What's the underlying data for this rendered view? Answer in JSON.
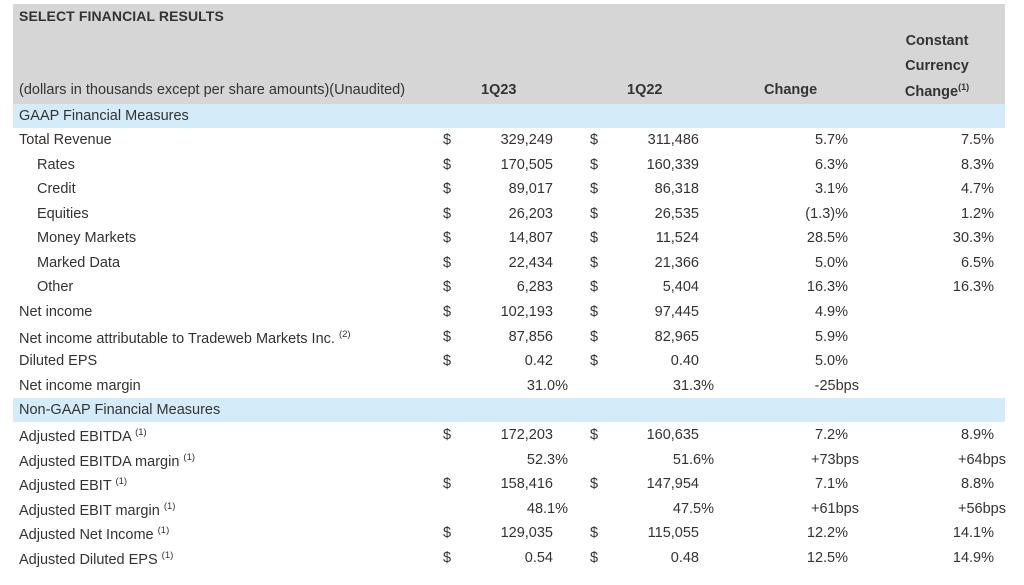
{
  "title": "SELECT FINANCIAL RESULTS",
  "header_note": "(dollars in thousands except per share amounts)(Unaudited)",
  "columns": {
    "q1": "1Q23",
    "q2": "1Q22",
    "change": "Change",
    "cc_line1": "Constant",
    "cc_line2": "Currency",
    "cc_line3": "Change",
    "cc_sup": "(1)"
  },
  "sections": {
    "gaap": "GAAP Financial Measures",
    "nongaap": "Non-GAAP Financial Measures"
  },
  "currency_symbol": "$",
  "rows": [
    {
      "label": "Total Revenue",
      "sup": "",
      "q1": "329,249",
      "q2": "311,486",
      "change": "5.7%",
      "cc": "7.5%"
    },
    {
      "label": "Rates",
      "sup": "",
      "q1": "170,505",
      "q2": "160,339",
      "change": "6.3%",
      "cc": "8.3%"
    },
    {
      "label": "Credit",
      "sup": "",
      "q1": "89,017",
      "q2": "86,318",
      "change": "3.1%",
      "cc": "4.7%"
    },
    {
      "label": "Equities",
      "sup": "",
      "q1": "26,203",
      "q2": "26,535",
      "change": "(1.3)%",
      "cc": "1.2%"
    },
    {
      "label": "Money Markets",
      "sup": "",
      "q1": "14,807",
      "q2": "11,524",
      "change": "28.5%",
      "cc": "30.3%"
    },
    {
      "label": "Marked Data",
      "sup": "",
      "q1": "22,434",
      "q2": "21,366",
      "change": "5.0%",
      "cc": "6.5%"
    },
    {
      "label": "Other",
      "sup": "",
      "q1": "6,283",
      "q2": "5,404",
      "change": "16.3%",
      "cc": "16.3%"
    },
    {
      "label": "Net income",
      "sup": "",
      "q1": "102,193",
      "q2": "97,445",
      "change": "4.9%",
      "cc": ""
    },
    {
      "label": "Net income attributable to Tradeweb Markets Inc.",
      "sup": "(2)",
      "q1": "87,856",
      "q2": "82,965",
      "change": "5.9%",
      "cc": ""
    },
    {
      "label": "Diluted EPS",
      "sup": "",
      "q1": "0.42",
      "q2": "0.40",
      "change": "5.0%",
      "cc": ""
    },
    {
      "label": "Net income margin",
      "sup": "",
      "q1": "31.0%",
      "q2": "31.3%",
      "change": "-25bps",
      "cc": ""
    },
    {
      "label": "Adjusted EBITDA",
      "sup": "(1)",
      "q1": "172,203",
      "q2": "160,635",
      "change": "7.2%",
      "cc": "8.9%"
    },
    {
      "label": "Adjusted EBITDA margin",
      "sup": "(1)",
      "q1": "52.3%",
      "q2": "51.6%",
      "change": "+73bps",
      "cc": "+64bps"
    },
    {
      "label": "Adjusted EBIT",
      "sup": "(1)",
      "q1": "158,416",
      "q2": "147,954",
      "change": "7.1%",
      "cc": "8.8%"
    },
    {
      "label": "Adjusted EBIT margin",
      "sup": "(1)",
      "q1": "48.1%",
      "q2": "47.5%",
      "change": "+61bps",
      "cc": "+56bps"
    },
    {
      "label": "Adjusted Net Income",
      "sup": "(1)",
      "q1": "129,035",
      "q2": "115,055",
      "change": "12.2%",
      "cc": "14.1%"
    },
    {
      "label": "Adjusted Diluted EPS",
      "sup": "(1)",
      "q1": "0.54",
      "q2": "0.48",
      "change": "12.5%",
      "cc": "14.9%"
    }
  ]
}
